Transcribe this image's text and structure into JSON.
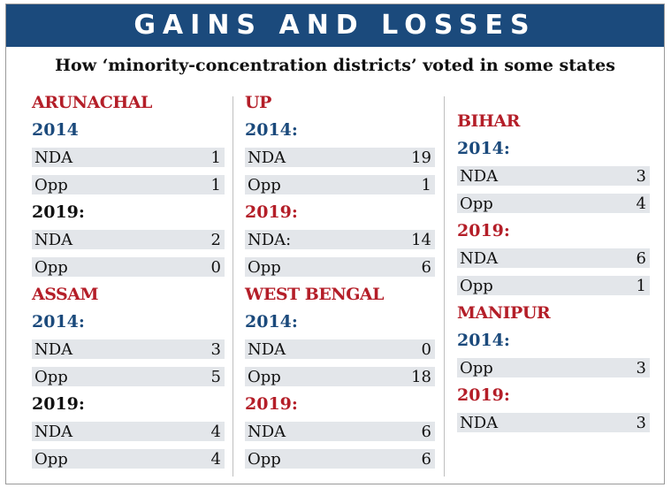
{
  "title": "GAINS AND LOSSES",
  "subtitle": "How ‘minority-concentration districts’ voted in some states",
  "colors": {
    "banner": "#1b4a7c",
    "state": "#b41e28",
    "year_blue": "#1b4a7c",
    "year_red": "#b41e28",
    "bar": "#e3e6ea"
  },
  "chart_data": {
    "type": "table",
    "columns": [
      [
        {
          "state": "ARUNACHAL",
          "blocks": [
            {
              "year": "2014",
              "year_color": "blue",
              "rows": [
                {
                  "label": "NDA",
                  "value": 1
                },
                {
                  "label": "Opp",
                  "value": 1
                }
              ]
            },
            {
              "year": "2019:",
              "year_color": "black",
              "rows": [
                {
                  "label": "NDA",
                  "value": 2
                },
                {
                  "label": "Opp",
                  "value": 0
                }
              ]
            }
          ]
        },
        {
          "state": "ASSAM",
          "blocks": [
            {
              "year": "2014:",
              "year_color": "blue",
              "rows": [
                {
                  "label": "NDA",
                  "value": 3
                },
                {
                  "label": "Opp",
                  "value": 5
                }
              ]
            },
            {
              "year": "2019:",
              "year_color": "black",
              "rows": [
                {
                  "label": "NDA",
                  "value": 4
                },
                {
                  "label": "Opp",
                  "value": 4
                }
              ]
            }
          ]
        }
      ],
      [
        {
          "state": "UP",
          "blocks": [
            {
              "year": "2014:",
              "year_color": "blue",
              "rows": [
                {
                  "label": "NDA",
                  "value": 19
                },
                {
                  "label": "Opp",
                  "value": 1
                }
              ]
            },
            {
              "year": "2019:",
              "year_color": "red",
              "rows": [
                {
                  "label": "NDA:",
                  "value": 14
                },
                {
                  "label": "Opp",
                  "value": 6
                }
              ]
            }
          ]
        },
        {
          "state": "WEST BENGAL",
          "blocks": [
            {
              "year": "2014:",
              "year_color": "blue",
              "rows": [
                {
                  "label": "NDA",
                  "value": 0
                },
                {
                  "label": "Opp",
                  "value": 18
                }
              ]
            },
            {
              "year": "2019:",
              "year_color": "red",
              "rows": [
                {
                  "label": "NDA",
                  "value": 6
                },
                {
                  "label": "Opp",
                  "value": 6
                }
              ]
            }
          ]
        }
      ],
      [
        {
          "state": "BIHAR",
          "blocks": [
            {
              "year": "2014:",
              "year_color": "blue",
              "rows": [
                {
                  "label": "NDA",
                  "value": 3
                },
                {
                  "label": "Opp",
                  "value": 4
                }
              ]
            },
            {
              "year": "2019:",
              "year_color": "red",
              "rows": [
                {
                  "label": "NDA",
                  "value": 6
                },
                {
                  "label": "Opp",
                  "value": 1
                }
              ]
            }
          ]
        },
        {
          "state": "MANIPUR",
          "blocks": [
            {
              "year": "2014:",
              "year_color": "blue",
              "rows": [
                {
                  "label": "Opp",
                  "value": 3
                }
              ]
            },
            {
              "year": "2019:",
              "year_color": "red",
              "rows": [
                {
                  "label": "NDA",
                  "value": 3
                }
              ]
            }
          ]
        }
      ]
    ]
  }
}
